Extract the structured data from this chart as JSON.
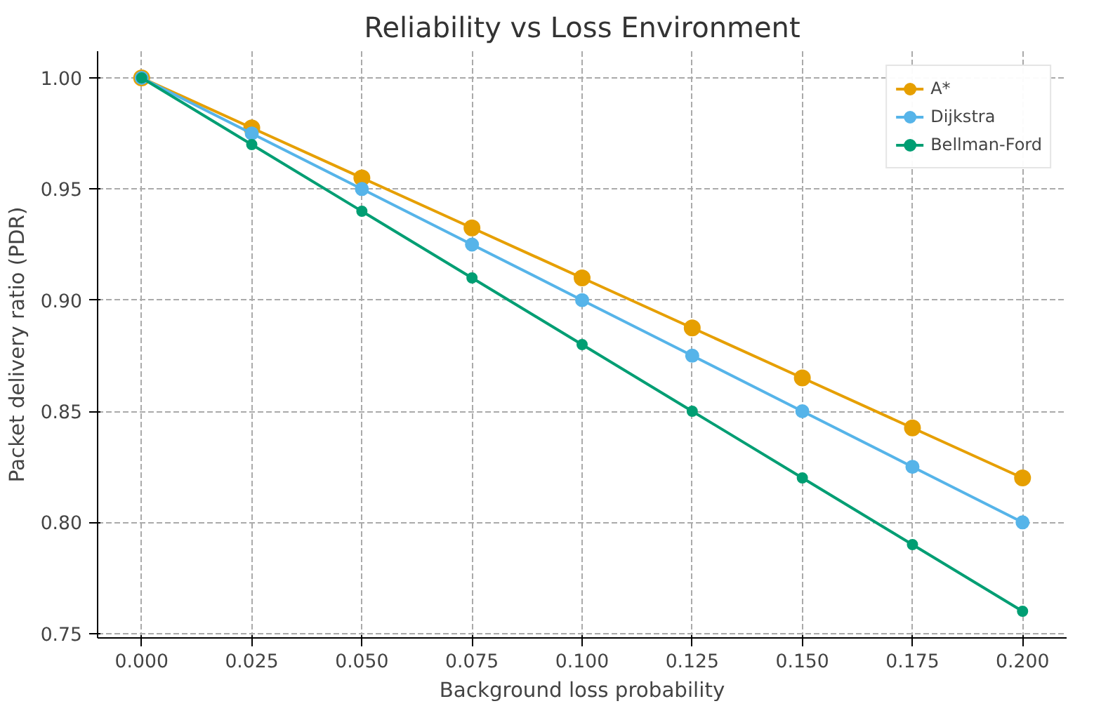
{
  "chart_data": {
    "type": "line",
    "title": "Reliability vs Loss Environment",
    "xlabel": "Background loss probability",
    "ylabel": "Packet delivery ratio (PDR)",
    "x": [
      0.0,
      0.025,
      0.05,
      0.075,
      0.1,
      0.125,
      0.15,
      0.175,
      0.2
    ],
    "series": [
      {
        "name": "A*",
        "color": "#e69f00",
        "values": [
          1.0,
          0.9775,
          0.955,
          0.9325,
          0.91,
          0.8875,
          0.865,
          0.8425,
          0.82
        ]
      },
      {
        "name": "Dijkstra",
        "color": "#56b4e9",
        "values": [
          1.0,
          0.975,
          0.95,
          0.925,
          0.9,
          0.875,
          0.85,
          0.825,
          0.8
        ]
      },
      {
        "name": "Bellman-Ford",
        "color": "#009e73",
        "values": [
          1.0,
          0.97,
          0.94,
          0.91,
          0.88,
          0.85,
          0.82,
          0.79,
          0.76
        ]
      }
    ],
    "xlim": [
      -0.01,
      0.21
    ],
    "ylim": [
      0.748,
      1.012
    ],
    "xticks": [
      {
        "value": 0.0,
        "label": "0.000"
      },
      {
        "value": 0.025,
        "label": "0.025"
      },
      {
        "value": 0.05,
        "label": "0.050"
      },
      {
        "value": 0.075,
        "label": "0.075"
      },
      {
        "value": 0.1,
        "label": "0.100"
      },
      {
        "value": 0.125,
        "label": "0.125"
      },
      {
        "value": 0.15,
        "label": "0.150"
      },
      {
        "value": 0.175,
        "label": "0.175"
      },
      {
        "value": 0.2,
        "label": "0.200"
      }
    ],
    "yticks": [
      {
        "value": 0.75,
        "label": "0.75"
      },
      {
        "value": 0.8,
        "label": "0.80"
      },
      {
        "value": 0.85,
        "label": "0.85"
      },
      {
        "value": 0.9,
        "label": "0.90"
      },
      {
        "value": 0.95,
        "label": "0.95"
      },
      {
        "value": 1.0,
        "label": "1.00"
      }
    ],
    "grid": true,
    "legend": "top right",
    "marker": "circle",
    "line_style": "solid"
  }
}
